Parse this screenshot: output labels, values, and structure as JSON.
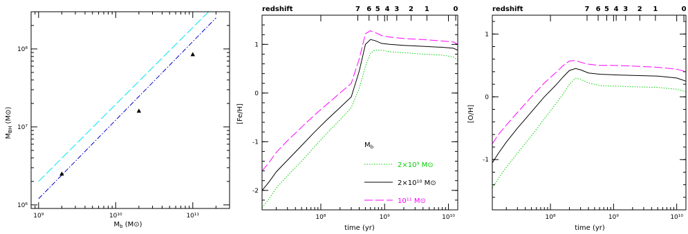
{
  "chart_data": [
    {
      "type": "scatter",
      "xlabel": "M",
      "xlabel_sub": "b",
      "xlabel_unit": "(M⊙)",
      "ylabel": "M",
      "ylabel_sub": "BH",
      "ylabel_unit": "(M⊙)",
      "x_scale": "log",
      "y_scale": "log",
      "xlim": [
        800000000.0,
        300000000000.0
      ],
      "ylim": [
        900000.0,
        300000000.0
      ],
      "x_ticks": [
        {
          "value": 1000000000.0,
          "label": "10⁹"
        },
        {
          "value": 10000000000.0,
          "label": "10¹⁰"
        },
        {
          "value": 100000000000.0,
          "label": "10¹¹"
        }
      ],
      "y_ticks": [
        {
          "value": 1000000.0,
          "label": "10⁶"
        },
        {
          "value": 10000000.0,
          "label": "10⁷"
        },
        {
          "value": 100000000.0,
          "label": "10⁸"
        }
      ],
      "points": [
        {
          "x": 2000000000.0,
          "y": 2500000.0
        },
        {
          "x": 20000000000.0,
          "y": 16000000.0
        },
        {
          "x": 100000000000.0,
          "y": 85000000.0
        }
      ],
      "lines": [
        {
          "style": "long-dash",
          "color": "#00e5ee",
          "x": [
            1000000000.0,
            160000000000.0
          ],
          "y": [
            2000000.0,
            300000000.0
          ]
        },
        {
          "style": "dash-dot",
          "color": "#0000cc",
          "x": [
            1000000000.0,
            200000000000.0
          ],
          "y": [
            1200000.0,
            250000000.0
          ]
        }
      ]
    },
    {
      "type": "line",
      "xlabel": "time (yr)",
      "ylabel": "[Fe/H]",
      "x_scale": "log",
      "xlim": [
        12000000.0,
        14000000000.0
      ],
      "ylim": [
        -2.4,
        1.6
      ],
      "x_ticks": [
        {
          "value": 100000000.0,
          "label": "10⁸"
        },
        {
          "value": 1000000000.0,
          "label": "10⁹"
        },
        {
          "value": 10000000000.0,
          "label": "10¹⁰"
        }
      ],
      "y_ticks": [
        -2,
        -1,
        0,
        1
      ],
      "top_axis": {
        "label": "redshift",
        "ticks": [
          {
            "label": "7",
            "t": 380000000.0
          },
          {
            "label": "6",
            "t": 570000000.0
          },
          {
            "label": "5",
            "t": 780000000.0
          },
          {
            "label": "4",
            "t": 1100000000.0
          },
          {
            "label": "3",
            "t": 1550000000.0
          },
          {
            "label": "2",
            "t": 2600000000.0
          },
          {
            "label": "1",
            "t": 4600000000.0
          },
          {
            "label": "0",
            "t": 13000000000.0
          }
        ]
      },
      "legend": {
        "title": "M",
        "title_sub": "b",
        "position": "center-right"
      },
      "series": [
        {
          "name": "2×10⁹ M⊙",
          "color": "#00cc00",
          "style": "dotted",
          "x": [
            12000000.0,
            15000000.0,
            20000000.0,
            30000000.0,
            50000000.0,
            80000000.0,
            120000000.0,
            200000000.0,
            300000000.0,
            400000000.0,
            500000000.0,
            600000000.0,
            700000000.0,
            900000000.0,
            1200000000.0,
            2000000000.0,
            4000000000.0,
            8000000000.0,
            12000000000.0,
            14000000000.0
          ],
          "y": [
            -2.35,
            -2.2,
            -1.95,
            -1.7,
            -1.4,
            -1.1,
            -0.85,
            -0.55,
            -0.3,
            0.1,
            0.55,
            0.82,
            0.88,
            0.88,
            0.85,
            0.83,
            0.8,
            0.78,
            0.74,
            0.68
          ]
        },
        {
          "name": "2×10¹⁰ M⊙",
          "color": "#000000",
          "style": "solid",
          "x": [
            12000000.0,
            15000000.0,
            20000000.0,
            30000000.0,
            50000000.0,
            80000000.0,
            120000000.0,
            200000000.0,
            300000000.0,
            400000000.0,
            500000000.0,
            600000000.0,
            700000000.0,
            900000000.0,
            1200000000.0,
            2000000000.0,
            4000000000.0,
            8000000000.0,
            12000000000.0,
            14000000000.0
          ],
          "y": [
            -2.0,
            -1.85,
            -1.62,
            -1.38,
            -1.08,
            -0.8,
            -0.57,
            -0.3,
            -0.08,
            0.45,
            1.0,
            1.1,
            1.08,
            1.02,
            1.0,
            0.98,
            0.96,
            0.94,
            0.92,
            0.88
          ]
        },
        {
          "name": "10¹¹ M⊙",
          "color": "#ff00ff",
          "style": "long-dash",
          "x": [
            12000000.0,
            15000000.0,
            20000000.0,
            30000000.0,
            50000000.0,
            80000000.0,
            120000000.0,
            200000000.0,
            300000000.0,
            400000000.0,
            500000000.0,
            600000000.0,
            700000000.0,
            900000000.0,
            1200000000.0,
            2000000000.0,
            4000000000.0,
            8000000000.0,
            12000000000.0,
            14000000000.0
          ],
          "y": [
            -1.6,
            -1.45,
            -1.22,
            -0.98,
            -0.7,
            -0.45,
            -0.25,
            0.0,
            0.2,
            0.7,
            1.22,
            1.28,
            1.25,
            1.18,
            1.15,
            1.12,
            1.1,
            1.07,
            1.05,
            1.0
          ]
        }
      ]
    },
    {
      "type": "line",
      "xlabel": "time (yr)",
      "ylabel": "[O/H]",
      "x_scale": "log",
      "xlim": [
        12000000.0,
        14000000000.0
      ],
      "ylim": [
        -1.8,
        1.3
      ],
      "x_ticks": [
        {
          "value": 100000000.0,
          "label": "10⁸"
        },
        {
          "value": 1000000000.0,
          "label": "10⁹"
        },
        {
          "value": 10000000000.0,
          "label": "10¹⁰"
        }
      ],
      "y_ticks": [
        -1,
        0,
        1
      ],
      "top_axis": {
        "label": "redshift",
        "ticks": [
          {
            "label": "7",
            "t": 380000000.0
          },
          {
            "label": "6",
            "t": 570000000.0
          },
          {
            "label": "5",
            "t": 780000000.0
          },
          {
            "label": "4",
            "t": 1100000000.0
          },
          {
            "label": "3",
            "t": 1550000000.0
          },
          {
            "label": "2",
            "t": 2600000000.0
          },
          {
            "label": "1",
            "t": 4600000000.0
          },
          {
            "label": "0",
            "t": 13000000000.0
          }
        ]
      },
      "series": [
        {
          "color": "#00cc00",
          "style": "dotted",
          "x": [
            12000000.0,
            15000000.0,
            20000000.0,
            30000000.0,
            50000000.0,
            80000000.0,
            120000000.0,
            160000000.0,
            200000000.0,
            250000000.0,
            300000000.0,
            400000000.0,
            600000000.0,
            1000000000.0,
            2000000000.0,
            5000000000.0,
            10000000000.0,
            14000000000.0
          ],
          "y": [
            -1.45,
            -1.3,
            -1.12,
            -0.9,
            -0.62,
            -0.35,
            -0.12,
            0.05,
            0.2,
            0.3,
            0.28,
            0.22,
            0.18,
            0.17,
            0.16,
            0.15,
            0.12,
            0.08
          ]
        },
        {
          "color": "#000000",
          "style": "solid",
          "x": [
            12000000.0,
            15000000.0,
            20000000.0,
            30000000.0,
            50000000.0,
            80000000.0,
            120000000.0,
            160000000.0,
            200000000.0,
            250000000.0,
            300000000.0,
            400000000.0,
            600000000.0,
            1000000000.0,
            2000000000.0,
            5000000000.0,
            10000000000.0,
            14000000000.0
          ],
          "y": [
            -1.05,
            -0.9,
            -0.72,
            -0.5,
            -0.24,
            0.0,
            0.18,
            0.32,
            0.42,
            0.45,
            0.43,
            0.38,
            0.36,
            0.35,
            0.34,
            0.33,
            0.3,
            0.25
          ]
        },
        {
          "color": "#ff00ff",
          "style": "long-dash",
          "x": [
            12000000.0,
            15000000.0,
            20000000.0,
            30000000.0,
            50000000.0,
            80000000.0,
            120000000.0,
            160000000.0,
            200000000.0,
            250000000.0,
            300000000.0,
            400000000.0,
            600000000.0,
            1000000000.0,
            2000000000.0,
            5000000000.0,
            10000000000.0,
            14000000000.0
          ],
          "y": [
            -0.75,
            -0.6,
            -0.45,
            -0.25,
            0.0,
            0.22,
            0.38,
            0.5,
            0.57,
            0.58,
            0.55,
            0.52,
            0.5,
            0.5,
            0.49,
            0.47,
            0.44,
            0.4
          ]
        }
      ]
    }
  ]
}
